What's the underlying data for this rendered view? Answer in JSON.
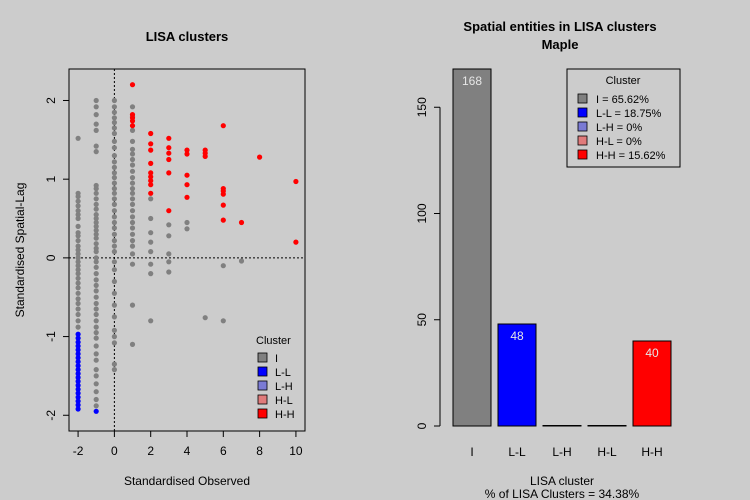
{
  "chart_data": [
    {
      "type": "scatter",
      "title": "LISA clusters",
      "xlabel": "Standardised Observed",
      "ylabel": "Standardised Spatial-Lag",
      "xlim": [
        -2.5,
        10.5
      ],
      "ylim": [
        -2.2,
        2.4
      ],
      "x_ticks": [
        -2,
        0,
        2,
        4,
        6,
        8,
        10
      ],
      "y_ticks": [
        -2,
        -1,
        0,
        1,
        2
      ],
      "reference_lines": {
        "x": 0,
        "y": 0
      },
      "legend": {
        "title": "Cluster",
        "placement": "bottom-right",
        "entries": [
          "I",
          "L-L",
          "L-H",
          "H-L",
          "H-H"
        ]
      },
      "colors": {
        "I": "#808080",
        "L-L": "#0000ff",
        "L-H": "#7b7bd4",
        "H-L": "#e07b7b",
        "H-H": "#ff0000"
      },
      "series": [
        {
          "name": "I",
          "points": [
            [
              -2,
              1.52
            ],
            [
              -2,
              0.82
            ],
            [
              -2,
              0.78
            ],
            [
              -2,
              0.72
            ],
            [
              -2,
              0.66
            ],
            [
              -2,
              0.6
            ],
            [
              -2,
              0.55
            ],
            [
              -2,
              0.5
            ],
            [
              -2,
              0.4
            ],
            [
              -2,
              0.32
            ],
            [
              -2,
              0.28
            ],
            [
              -2,
              0.22
            ],
            [
              -2,
              0.15
            ],
            [
              -2,
              0.1
            ],
            [
              -2,
              0.05
            ],
            [
              -2,
              0.0
            ],
            [
              -2,
              -0.05
            ],
            [
              -2,
              -0.1
            ],
            [
              -2,
              -0.15
            ],
            [
              -2,
              -0.2
            ],
            [
              -2,
              -0.26
            ],
            [
              -2,
              -0.32
            ],
            [
              -2,
              -0.38
            ],
            [
              -2,
              -0.45
            ],
            [
              -2,
              -0.52
            ],
            [
              -2,
              -0.58
            ],
            [
              -2,
              -0.65
            ],
            [
              -2,
              -0.72
            ],
            [
              -2,
              -0.8
            ],
            [
              -2,
              -0.88
            ],
            [
              -1,
              2.0
            ],
            [
              -1,
              1.92
            ],
            [
              -1,
              1.82
            ],
            [
              -1,
              1.7
            ],
            [
              -1,
              1.62
            ],
            [
              -1,
              1.42
            ],
            [
              -1,
              1.35
            ],
            [
              -1,
              0.92
            ],
            [
              -1,
              0.88
            ],
            [
              -1,
              0.82
            ],
            [
              -1,
              0.75
            ],
            [
              -1,
              0.68
            ],
            [
              -1,
              0.62
            ],
            [
              -1,
              0.55
            ],
            [
              -1,
              0.5
            ],
            [
              -1,
              0.45
            ],
            [
              -1,
              0.4
            ],
            [
              -1,
              0.35
            ],
            [
              -1,
              0.3
            ],
            [
              -1,
              0.25
            ],
            [
              -1,
              0.18
            ],
            [
              -1,
              0.12
            ],
            [
              -1,
              0.08
            ],
            [
              -1,
              0.0
            ],
            [
              -1,
              -0.05
            ],
            [
              -1,
              -0.12
            ],
            [
              -1,
              -0.2
            ],
            [
              -1,
              -0.28
            ],
            [
              -1,
              -0.35
            ],
            [
              -1,
              -0.42
            ],
            [
              -1,
              -0.5
            ],
            [
              -1,
              -0.58
            ],
            [
              -1,
              -0.65
            ],
            [
              -1,
              -0.72
            ],
            [
              -1,
              -0.8
            ],
            [
              -1,
              -0.88
            ],
            [
              -1,
              -0.95
            ],
            [
              -1,
              -1.02
            ],
            [
              -1,
              -1.12
            ],
            [
              -1,
              -1.22
            ],
            [
              -1,
              -1.3
            ],
            [
              -1,
              -1.42
            ],
            [
              -1,
              -1.5
            ],
            [
              -1,
              -1.6
            ],
            [
              -1,
              -1.7
            ],
            [
              -1,
              -1.8
            ],
            [
              -1,
              -1.88
            ],
            [
              0,
              2.0
            ],
            [
              0,
              1.92
            ],
            [
              0,
              1.85
            ],
            [
              0,
              1.78
            ],
            [
              0,
              1.72
            ],
            [
              0,
              1.65
            ],
            [
              0,
              1.58
            ],
            [
              0,
              1.48
            ],
            [
              0,
              1.4
            ],
            [
              0,
              1.3
            ],
            [
              0,
              1.22
            ],
            [
              0,
              1.15
            ],
            [
              0,
              1.08
            ],
            [
              0,
              1.02
            ],
            [
              0,
              0.95
            ],
            [
              0,
              0.88
            ],
            [
              0,
              0.82
            ],
            [
              0,
              0.75
            ],
            [
              0,
              0.68
            ],
            [
              0,
              0.6
            ],
            [
              0,
              0.52
            ],
            [
              0,
              0.45
            ],
            [
              0,
              0.38
            ],
            [
              0,
              0.3
            ],
            [
              0,
              0.22
            ],
            [
              0,
              0.15
            ],
            [
              0,
              0.08
            ],
            [
              0,
              -0.05
            ],
            [
              0,
              -0.15
            ],
            [
              0,
              -0.3
            ],
            [
              0,
              -0.45
            ],
            [
              0,
              -0.6
            ],
            [
              0,
              -0.75
            ],
            [
              0,
              -0.92
            ],
            [
              0,
              -1.0
            ],
            [
              0,
              -1.08
            ],
            [
              0,
              -1.35
            ],
            [
              0,
              -1.42
            ],
            [
              1,
              1.92
            ],
            [
              1,
              1.8
            ],
            [
              1,
              1.62
            ],
            [
              1,
              1.48
            ],
            [
              1,
              1.38
            ],
            [
              1,
              1.32
            ],
            [
              1,
              1.25
            ],
            [
              1,
              1.18
            ],
            [
              1,
              1.1
            ],
            [
              1,
              1.02
            ],
            [
              1,
              0.95
            ],
            [
              1,
              0.88
            ],
            [
              1,
              0.82
            ],
            [
              1,
              0.75
            ],
            [
              1,
              0.68
            ],
            [
              1,
              0.6
            ],
            [
              1,
              0.52
            ],
            [
              1,
              0.45
            ],
            [
              1,
              0.38
            ],
            [
              1,
              0.3
            ],
            [
              1,
              0.22
            ],
            [
              1,
              0.15
            ],
            [
              1,
              0.05
            ],
            [
              1,
              -0.08
            ],
            [
              1,
              -0.6
            ],
            [
              1,
              -1.1
            ],
            [
              2,
              0.75
            ],
            [
              2,
              0.5
            ],
            [
              2,
              0.32
            ],
            [
              2,
              0.2
            ],
            [
              2,
              0.08
            ],
            [
              2,
              -0.08
            ],
            [
              2,
              -0.2
            ],
            [
              2,
              -0.8
            ],
            [
              3,
              0.42
            ],
            [
              3,
              0.28
            ],
            [
              3,
              0.05
            ],
            [
              3,
              -0.05
            ],
            [
              3,
              -0.18
            ],
            [
              4,
              0.45
            ],
            [
              4,
              0.37
            ],
            [
              5,
              -0.76
            ],
            [
              6,
              -0.1
            ],
            [
              6,
              -0.8
            ],
            [
              7,
              -0.04
            ]
          ]
        },
        {
          "name": "L-L",
          "points": [
            [
              -2,
              -0.97
            ],
            [
              -2,
              -1.02
            ],
            [
              -2,
              -1.07
            ],
            [
              -2,
              -1.12
            ],
            [
              -2,
              -1.17
            ],
            [
              -2,
              -1.22
            ],
            [
              -2,
              -1.27
            ],
            [
              -2,
              -1.32
            ],
            [
              -2,
              -1.37
            ],
            [
              -2,
              -1.42
            ],
            [
              -2,
              -1.47
            ],
            [
              -2,
              -1.52
            ],
            [
              -2,
              -1.57
            ],
            [
              -2,
              -1.62
            ],
            [
              -2,
              -1.67
            ],
            [
              -2,
              -1.72
            ],
            [
              -2,
              -1.77
            ],
            [
              -2,
              -1.82
            ],
            [
              -2,
              -1.87
            ],
            [
              -2,
              -1.92
            ],
            [
              -1,
              -1.95
            ]
          ]
        },
        {
          "name": "L-H",
          "points": []
        },
        {
          "name": "H-L",
          "points": []
        },
        {
          "name": "H-H",
          "points": [
            [
              1,
              2.2
            ],
            [
              1,
              1.82
            ],
            [
              1,
              1.78
            ],
            [
              1,
              1.74
            ],
            [
              1,
              1.68
            ],
            [
              2,
              1.58
            ],
            [
              2,
              1.45
            ],
            [
              2,
              1.37
            ],
            [
              2,
              1.2
            ],
            [
              2,
              1.08
            ],
            [
              2,
              1.03
            ],
            [
              2,
              0.98
            ],
            [
              2,
              0.93
            ],
            [
              2,
              0.82
            ],
            [
              3,
              1.52
            ],
            [
              3,
              1.4
            ],
            [
              3,
              1.33
            ],
            [
              3,
              1.25
            ],
            [
              3,
              1.08
            ],
            [
              3,
              0.6
            ],
            [
              4,
              1.37
            ],
            [
              4,
              1.32
            ],
            [
              4,
              1.05
            ],
            [
              4,
              0.93
            ],
            [
              4,
              0.77
            ],
            [
              5,
              1.37
            ],
            [
              5,
              1.33
            ],
            [
              5,
              1.29
            ],
            [
              6,
              1.68
            ],
            [
              6,
              0.88
            ],
            [
              6,
              0.85
            ],
            [
              6,
              0.81
            ],
            [
              6,
              0.67
            ],
            [
              6,
              0.48
            ],
            [
              7,
              0.45
            ],
            [
              8,
              1.28
            ],
            [
              10,
              0.97
            ],
            [
              10,
              0.2
            ]
          ]
        }
      ]
    },
    {
      "type": "bar",
      "title": "Spatial entities in LISA clusters",
      "subtitle": "Maple",
      "xlabel": "LISA cluster",
      "footnote": "% of LISA Clusters = 34.38%",
      "categories": [
        "I",
        "L-L",
        "L-H",
        "H-L",
        "H-H"
      ],
      "values": [
        168,
        48,
        0,
        0,
        40
      ],
      "data_labels": [
        "168",
        "48",
        "",
        "",
        "40"
      ],
      "ylim": [
        0,
        168
      ],
      "y_ticks": [
        0,
        50,
        100,
        150
      ],
      "colors": [
        "#808080",
        "#0000ff",
        "#7b7bd4",
        "#e07b7b",
        "#ff0000"
      ],
      "legend": {
        "title": "Cluster",
        "placement": "top-right",
        "entries": [
          "I = 65.62%",
          "L-L = 18.75%",
          "L-H = 0%",
          "H-L = 0%",
          "H-H = 15.62%"
        ]
      }
    }
  ]
}
